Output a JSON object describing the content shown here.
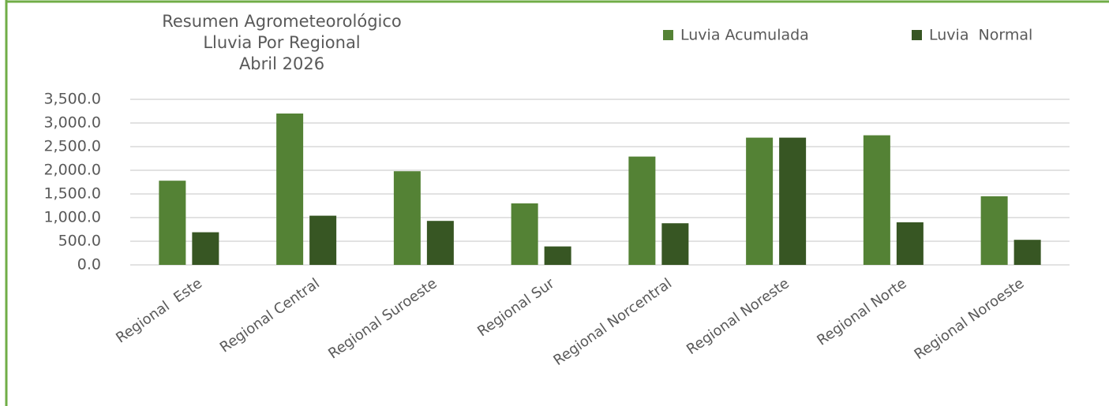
{
  "chart_data": {
    "type": "bar",
    "title": [
      "Resumen Agrometeorológico",
      "Lluvia Por Regional",
      "Abril 2026"
    ],
    "categories": [
      "Regional  Este",
      "Regional Central",
      "Regional Suroeste",
      "Regional Sur",
      "Regional Norcentral",
      "Regional Noreste",
      "Regional Norte",
      "Regional Noroeste"
    ],
    "series": [
      {
        "name": "Luvia Acumulada",
        "color": "#548235",
        "values": [
          1780,
          3200,
          1980,
          1300,
          2290,
          2690,
          2740,
          1450
        ]
      },
      {
        "name": "Luvia  Normal",
        "color": "#375623",
        "values": [
          690,
          1040,
          930,
          390,
          880,
          2690,
          900,
          530
        ]
      }
    ],
    "ylim": [
      0,
      3500
    ],
    "yticks": [
      {
        "value": 0,
        "label": "0.0"
      },
      {
        "value": 500,
        "label": "500.0"
      },
      {
        "value": 1000,
        "label": "1,000.0"
      },
      {
        "value": 1500,
        "label": "1,500.0"
      },
      {
        "value": 2000,
        "label": "2,000.0"
      },
      {
        "value": 2500,
        "label": "2,500.0"
      },
      {
        "value": 3000,
        "label": "3,000.0"
      },
      {
        "value": 3500,
        "label": "3,500.0"
      }
    ],
    "grid": true,
    "legend": "top-right"
  }
}
